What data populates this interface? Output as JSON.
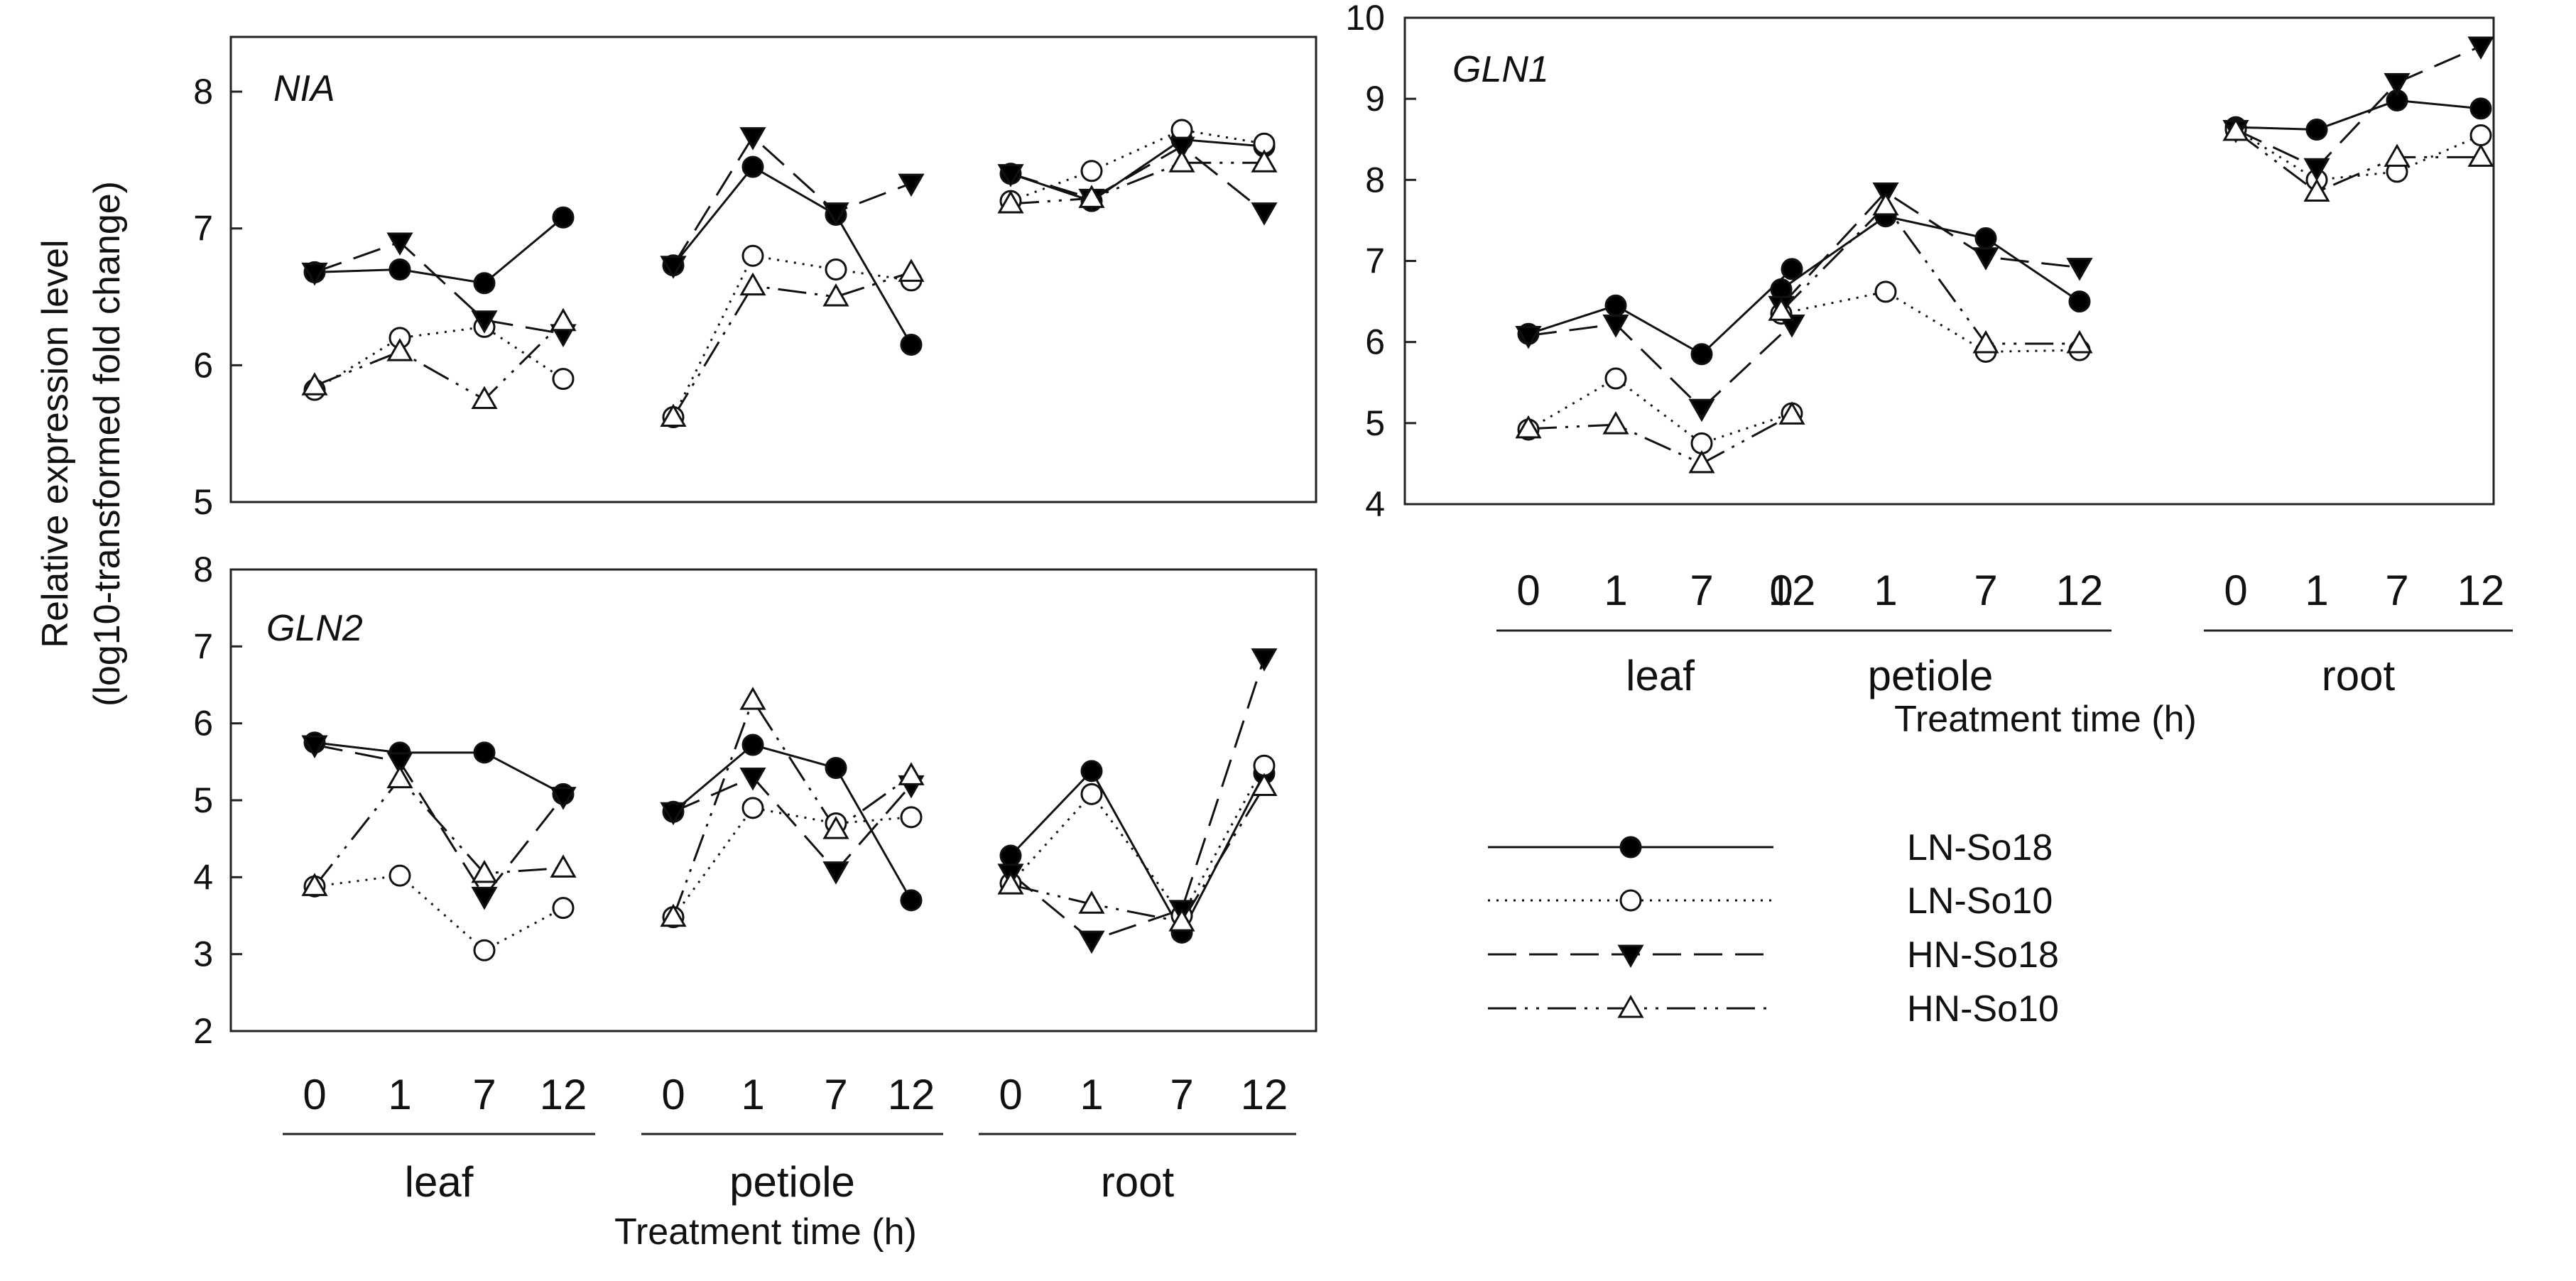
{
  "chart_data": [
    {
      "type": "line",
      "title": "NIA",
      "ylim": [
        5,
        8.4
      ],
      "yticks": [
        5,
        6,
        7,
        8
      ],
      "x_ticks": [
        "0",
        "1",
        "7",
        "12"
      ],
      "groups": [
        "leaf",
        "petiole",
        "root"
      ],
      "series": [
        {
          "name": "LN-So18",
          "values": [
            [
              6.68,
              6.7,
              6.6,
              7.08
            ],
            [
              6.73,
              7.45,
              7.1,
              6.15
            ],
            [
              7.4,
              7.2,
              7.65,
              7.6
            ]
          ]
        },
        {
          "name": "LN-So10",
          "values": [
            [
              5.82,
              6.2,
              6.28,
              5.9
            ],
            [
              5.62,
              6.8,
              6.7,
              6.62
            ],
            [
              7.2,
              7.42,
              7.72,
              7.62
            ]
          ]
        },
        {
          "name": "HN-So18",
          "values": [
            [
              6.68,
              6.9,
              6.33,
              6.23
            ],
            [
              6.73,
              7.67,
              7.12,
              7.33
            ],
            [
              7.4,
              7.22,
              7.6,
              7.12
            ]
          ]
        },
        {
          "name": "HN-So10",
          "values": [
            [
              5.85,
              6.1,
              5.75,
              6.32
            ],
            [
              5.62,
              6.58,
              6.5,
              6.68
            ],
            [
              7.18,
              7.22,
              7.48,
              7.48
            ]
          ]
        }
      ]
    },
    {
      "type": "line",
      "title": "GLN1",
      "ylim": [
        4,
        10
      ],
      "yticks": [
        4,
        5,
        6,
        7,
        8,
        9,
        10
      ],
      "x_ticks": [
        "0",
        "1",
        "7",
        "12"
      ],
      "groups": [
        "leaf",
        "petiole",
        "root"
      ],
      "series": [
        {
          "name": "LN-So18",
          "values": [
            [
              6.1,
              6.45,
              5.85,
              6.9
            ],
            [
              6.65,
              7.55,
              7.28,
              6.5
            ],
            [
              8.65,
              8.62,
              8.98,
              8.88
            ]
          ]
        },
        {
          "name": "LN-So10",
          "values": [
            [
              4.92,
              5.55,
              4.75,
              5.12
            ],
            [
              6.35,
              6.62,
              5.88,
              5.9
            ],
            [
              8.62,
              8.0,
              8.1,
              8.55
            ]
          ]
        },
        {
          "name": "HN-So18",
          "values": [
            [
              6.08,
              6.22,
              5.18,
              6.22
            ],
            [
              6.45,
              7.85,
              7.05,
              6.92
            ],
            [
              8.62,
              8.15,
              9.2,
              9.65
            ]
          ]
        },
        {
          "name": "HN-So10",
          "values": [
            [
              4.93,
              4.98,
              4.5,
              5.1
            ],
            [
              6.38,
              7.68,
              5.98,
              5.98
            ],
            [
              8.6,
              7.85,
              8.28,
              8.28
            ]
          ]
        }
      ]
    },
    {
      "type": "line",
      "title": "GLN2",
      "ylim": [
        2,
        8
      ],
      "yticks": [
        2,
        3,
        4,
        5,
        6,
        7,
        8
      ],
      "x_ticks": [
        "0",
        "1",
        "7",
        "12"
      ],
      "groups": [
        "leaf",
        "petiole",
        "root"
      ],
      "series": [
        {
          "name": "LN-So18",
          "values": [
            [
              5.75,
              5.62,
              5.62,
              5.08
            ],
            [
              4.85,
              5.72,
              5.42,
              3.7
            ],
            [
              4.28,
              5.38,
              3.28,
              5.35
            ]
          ]
        },
        {
          "name": "LN-So10",
          "values": [
            [
              3.88,
              4.02,
              3.05,
              3.6
            ],
            [
              3.48,
              4.9,
              4.7,
              4.78
            ],
            [
              3.92,
              5.08,
              3.5,
              5.45
            ]
          ]
        },
        {
          "name": "HN-So18",
          "values": [
            [
              5.72,
              5.5,
              3.75,
              5.05
            ],
            [
              4.85,
              5.3,
              4.08,
              5.2
            ],
            [
              4.05,
              3.18,
              3.58,
              6.85
            ]
          ]
        },
        {
          "name": "HN-So10",
          "values": [
            [
              3.88,
              5.28,
              4.05,
              4.12
            ],
            [
              3.48,
              6.3,
              4.62,
              5.32
            ],
            [
              3.9,
              3.65,
              3.42,
              5.18
            ]
          ]
        }
      ]
    }
  ],
  "legend": [
    {
      "name": "LN-So18",
      "line": "solid",
      "marker": "filled-circle"
    },
    {
      "name": "LN-So10",
      "line": "dotted",
      "marker": "open-circle"
    },
    {
      "name": "HN-So18",
      "line": "dashed",
      "marker": "filled-triangle-down"
    },
    {
      "name": "HN-So10",
      "line": "dash-dot-dot",
      "marker": "open-triangle-up"
    }
  ],
  "ylabel_line1": "Relative expression level",
  "ylabel_line2": "(log10-transformed fold change)",
  "xlabel": "Treatment time (h)"
}
